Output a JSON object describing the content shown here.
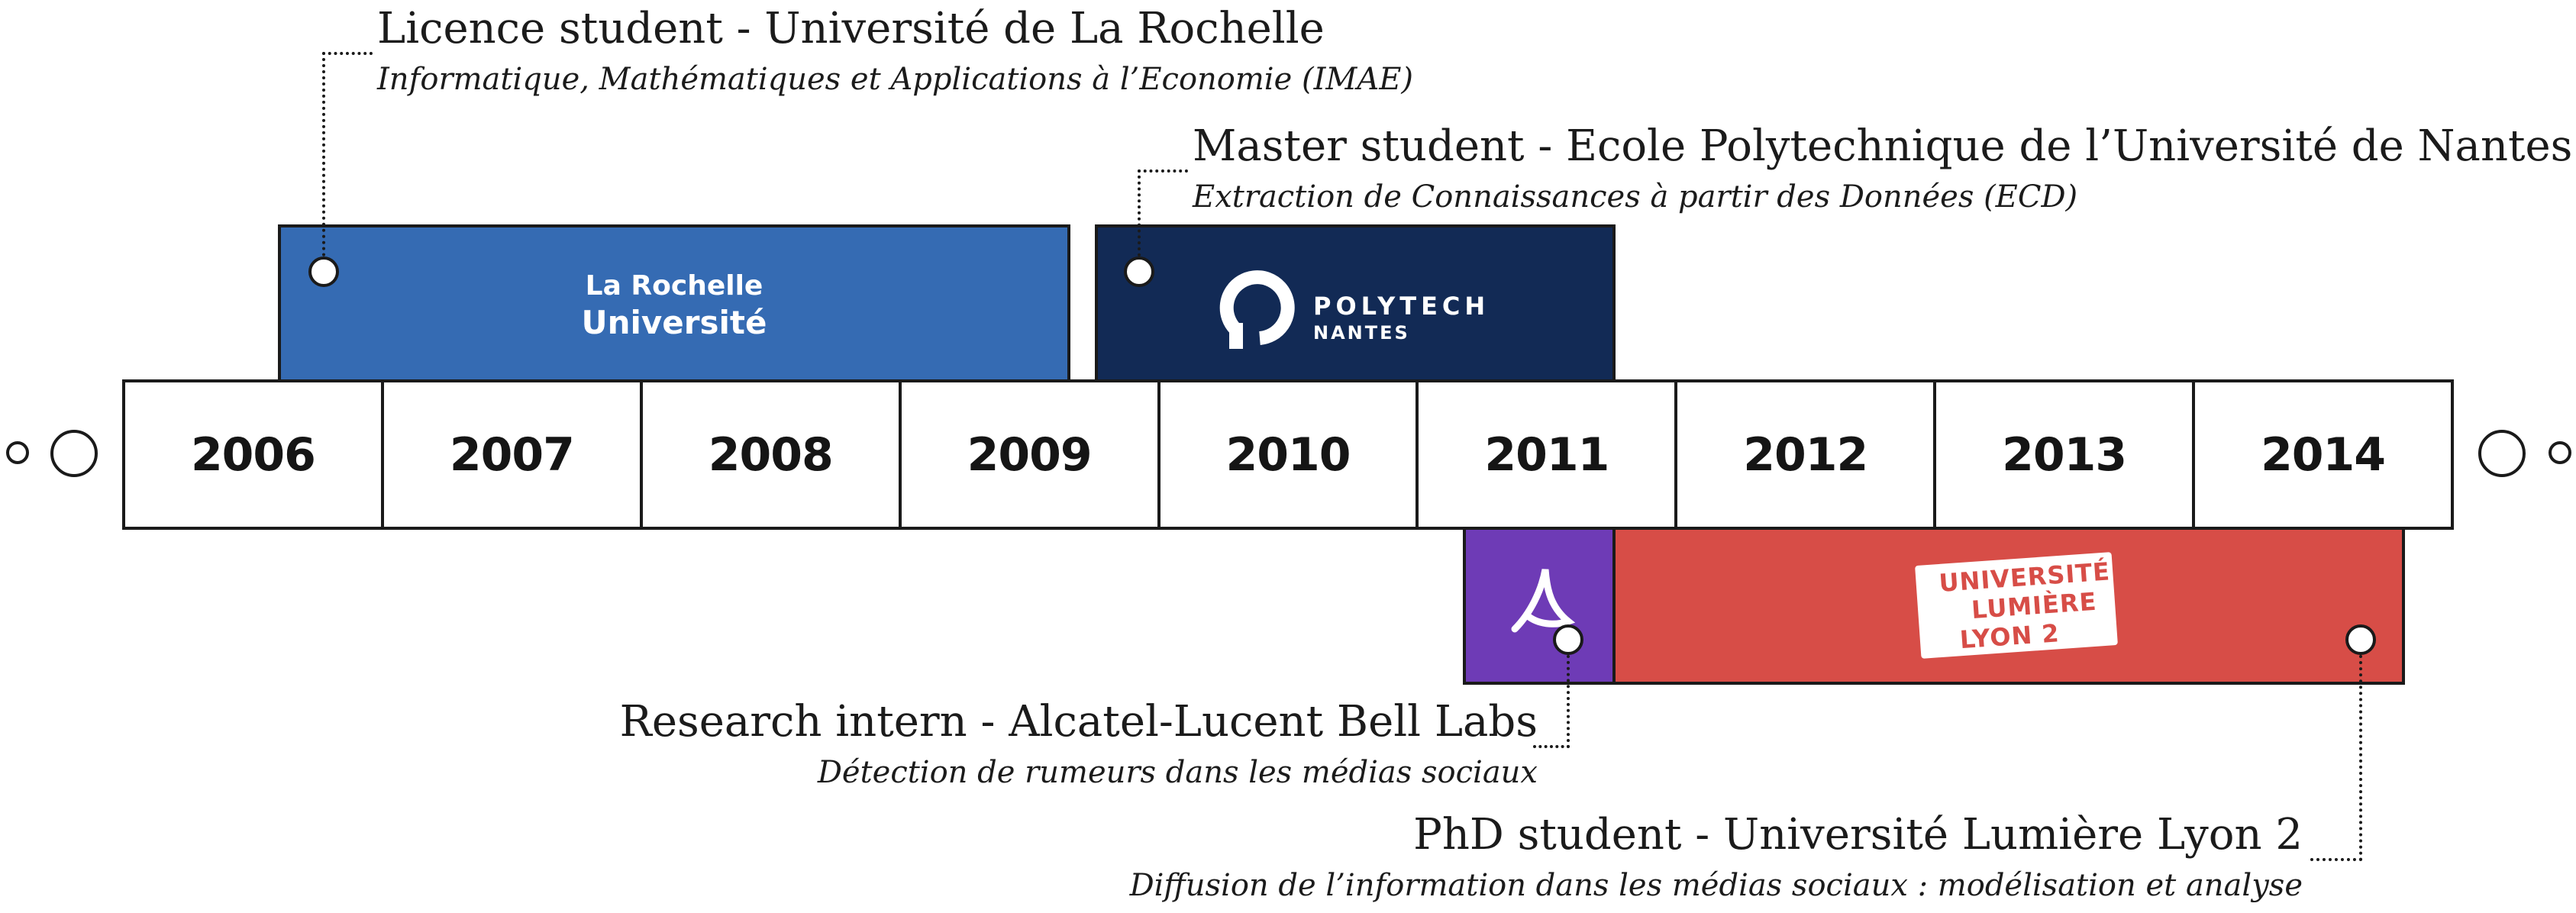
{
  "timeline": {
    "years": [
      "2006",
      "2007",
      "2008",
      "2009",
      "2010",
      "2011",
      "2012",
      "2013",
      "2014"
    ]
  },
  "periods": [
    {
      "id": "licence",
      "title": "Licence student - Université de La Rochelle",
      "subtitle": "Informatique, Mathématiques et Applications à l’Economie (IMAE)",
      "logo_text": [
        "La Rochelle",
        "Université"
      ],
      "color": "#356bb3"
    },
    {
      "id": "master",
      "title": "Master student - Ecole Polytechnique de l’Université de Nantes",
      "subtitle": "Extraction de Connaissances à partir des Données (ECD)",
      "logo_text": [
        "POLYTECH",
        "NANTES"
      ],
      "color": "#122a55"
    },
    {
      "id": "intern",
      "title": "Research intern - Alcatel-Lucent Bell Labs",
      "subtitle": "Détection de rumeurs dans les médias sociaux",
      "logo_icon": "alcatel-lucent-logo-icon",
      "color": "#6e3bb6"
    },
    {
      "id": "phd",
      "title": "PhD student - Université Lumière Lyon 2",
      "subtitle": "Diffusion de l’information dans les médias sociaux : modélisation et analyse",
      "logo_text": [
        "UNIVERSITÉ",
        "LUMIÈRE",
        "LYON 2"
      ],
      "color": "#d74d47"
    }
  ]
}
